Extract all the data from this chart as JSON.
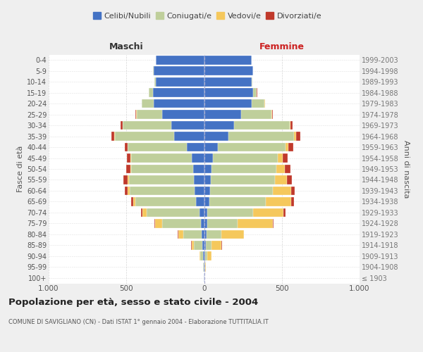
{
  "age_groups": [
    "100+",
    "95-99",
    "90-94",
    "85-89",
    "80-84",
    "75-79",
    "70-74",
    "65-69",
    "60-64",
    "55-59",
    "50-54",
    "45-49",
    "40-44",
    "35-39",
    "30-34",
    "25-29",
    "20-24",
    "15-19",
    "10-14",
    "5-9",
    "0-4"
  ],
  "birth_years": [
    "≤ 1903",
    "1904-1908",
    "1909-1913",
    "1914-1918",
    "1919-1923",
    "1924-1928",
    "1929-1933",
    "1934-1938",
    "1939-1943",
    "1944-1948",
    "1949-1953",
    "1954-1958",
    "1959-1963",
    "1964-1968",
    "1969-1973",
    "1974-1978",
    "1979-1983",
    "1984-1988",
    "1989-1993",
    "1994-1998",
    "1999-2003"
  ],
  "male": {
    "celibi": [
      2,
      3,
      5,
      10,
      15,
      20,
      30,
      50,
      60,
      65,
      70,
      80,
      110,
      195,
      210,
      270,
      325,
      330,
      310,
      325,
      310
    ],
    "coniugati": [
      1,
      5,
      18,
      55,
      120,
      250,
      340,
      390,
      420,
      420,
      400,
      390,
      380,
      380,
      315,
      165,
      75,
      25,
      8,
      4,
      2
    ],
    "vedovi": [
      0,
      1,
      5,
      15,
      30,
      45,
      25,
      15,
      10,
      8,
      5,
      3,
      2,
      2,
      1,
      1,
      0,
      0,
      0,
      0,
      0
    ],
    "divorziati": [
      0,
      0,
      1,
      2,
      3,
      5,
      10,
      15,
      20,
      28,
      28,
      22,
      18,
      18,
      10,
      5,
      2,
      1,
      0,
      0,
      0
    ]
  },
  "female": {
    "nubili": [
      2,
      3,
      5,
      10,
      15,
      20,
      22,
      32,
      38,
      42,
      48,
      58,
      88,
      155,
      195,
      240,
      305,
      315,
      305,
      315,
      305
    ],
    "coniugate": [
      1,
      4,
      14,
      38,
      95,
      195,
      295,
      365,
      405,
      415,
      415,
      415,
      435,
      425,
      355,
      195,
      85,
      25,
      6,
      2,
      1
    ],
    "vedove": [
      1,
      5,
      28,
      65,
      145,
      225,
      195,
      165,
      115,
      78,
      58,
      32,
      18,
      10,
      5,
      3,
      1,
      0,
      0,
      0,
      0
    ],
    "divorziate": [
      0,
      0,
      1,
      2,
      3,
      5,
      10,
      18,
      24,
      28,
      33,
      32,
      33,
      28,
      14,
      5,
      2,
      1,
      0,
      0,
      0
    ]
  },
  "colors": {
    "celibi_nubili": "#4472C4",
    "coniugati": "#BFCF9B",
    "vedovi": "#F5C85C",
    "divorziati": "#C0392B"
  },
  "legend_labels": [
    "Celibi/Nubili",
    "Coniugati/e",
    "Vedovi/e",
    "Divorziati/e"
  ],
  "title": "Popolazione per età, sesso e stato civile - 2004",
  "subtitle": "COMUNE DI SAVIGLIANO (CN) - Dati ISTAT 1° gennaio 2004 - Elaborazione TUTTITALIA.IT",
  "label_maschi": "Maschi",
  "label_femmine": "Femmine",
  "ylabel_left": "Fasce di età",
  "ylabel_right": "Anni di nascita",
  "xlim": 1000,
  "xticklabels": [
    "1.000",
    "500",
    "0",
    "500",
    "1.000"
  ],
  "bg_color": "#efefef",
  "plot_bg_color": "#ffffff",
  "grid_color": "#cccccc",
  "maschi_color": "#333333",
  "femmine_color": "#cc2222"
}
